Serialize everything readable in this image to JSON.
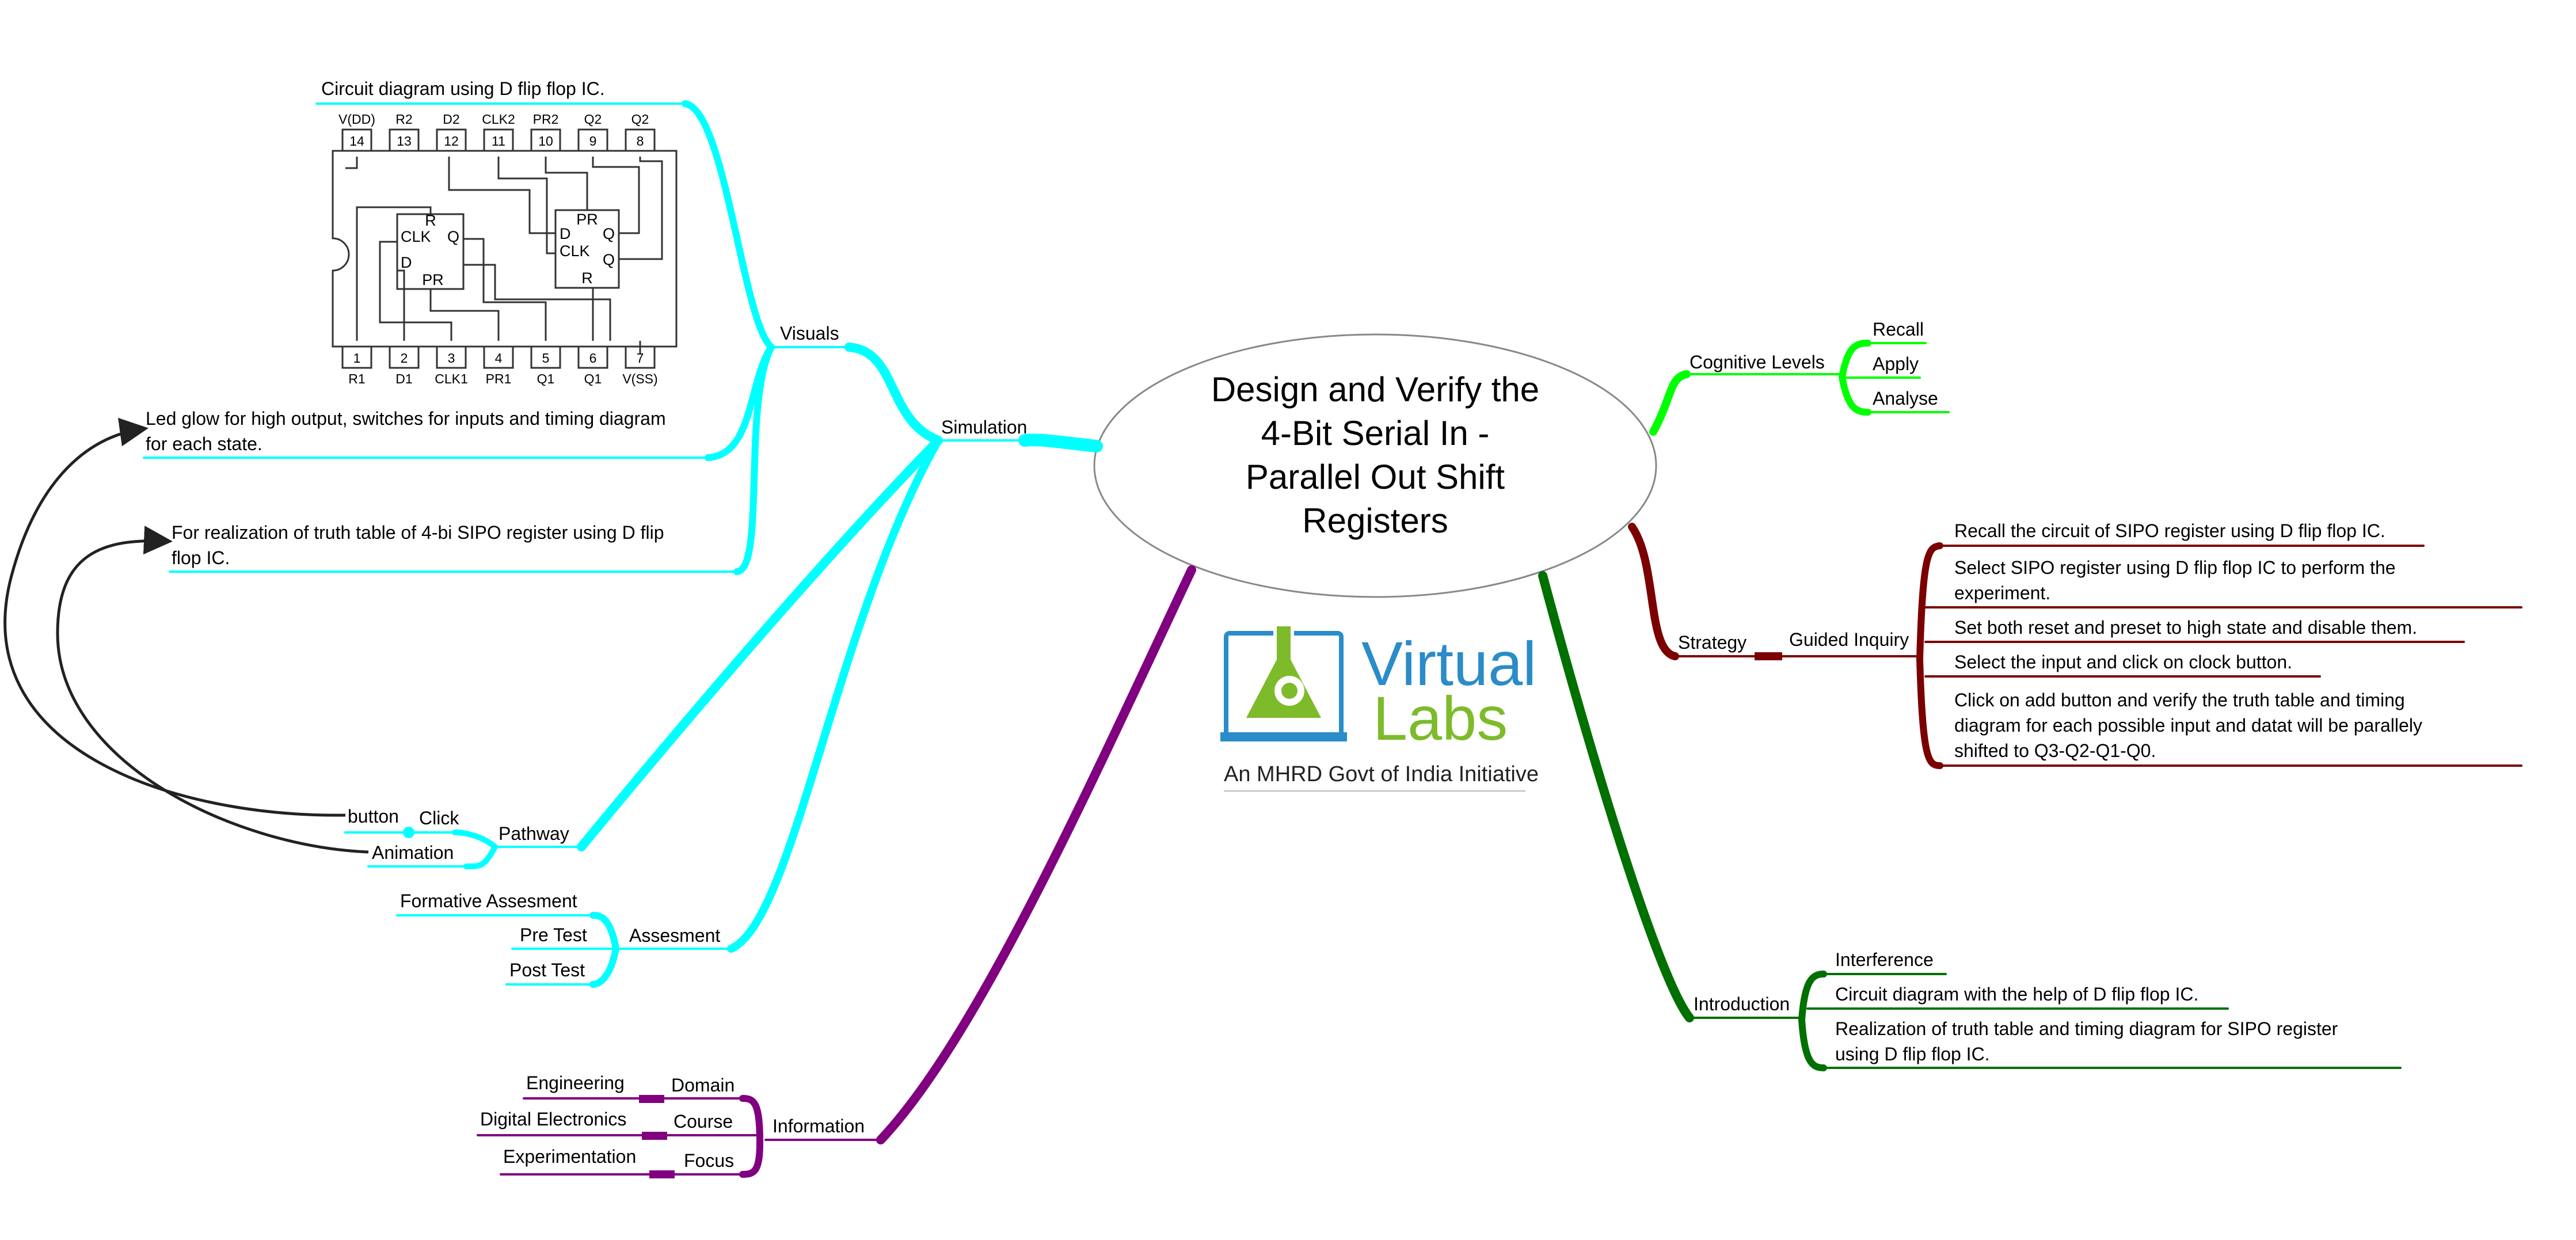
{
  "central": {
    "lines": [
      "Design and Verify the",
      "4-Bit Serial In -",
      "Parallel Out Shift",
      "Registers"
    ]
  },
  "colors": {
    "simulation": "#00ffff",
    "cognitive": "#00ff00",
    "strategy": "#7b0000",
    "introduction": "#007000",
    "information": "#800080",
    "arrow": "#222222"
  },
  "simulation": {
    "label": "Simulation",
    "visuals": {
      "label": "Visuals",
      "items": [
        {
          "lines": [
            "Circuit diagram using D flip flop IC."
          ]
        },
        {
          "lines": [
            "Led glow for high output, switches for inputs and timing diagram",
            "for each state."
          ]
        },
        {
          "lines": [
            "For realization of truth table of 4-bi SIPO register using D flip",
            "flop IC."
          ]
        }
      ]
    },
    "pathway": {
      "label": "Pathway",
      "click": "Click",
      "button": "button",
      "animation": "Animation"
    },
    "assesment": {
      "label": "Assesment",
      "items": [
        "Formative Assesment",
        "Pre Test",
        "Post Test"
      ]
    }
  },
  "chip": {
    "top_pins": [
      {
        "num": "14",
        "name": "V(DD)"
      },
      {
        "num": "13",
        "name": "R2"
      },
      {
        "num": "12",
        "name": "D2"
      },
      {
        "num": "11",
        "name": "CLK2"
      },
      {
        "num": "10",
        "name": "PR2"
      },
      {
        "num": "9",
        "name": "Q2"
      },
      {
        "num": "8",
        "name": "Q2"
      }
    ],
    "bottom_pins": [
      {
        "num": "1",
        "name": "R1"
      },
      {
        "num": "2",
        "name": "D1"
      },
      {
        "num": "3",
        "name": "CLK1"
      },
      {
        "num": "4",
        "name": "PR1"
      },
      {
        "num": "5",
        "name": "Q1"
      },
      {
        "num": "6",
        "name": "Q1"
      },
      {
        "num": "7",
        "name": "V(SS)"
      }
    ],
    "ff1": [
      "R",
      "CLK",
      "Q",
      "D",
      "PR"
    ],
    "ff2": [
      "PR",
      "D",
      "Q",
      "CLK",
      "Q",
      "R"
    ]
  },
  "information": {
    "label": "Information",
    "items": [
      {
        "label": "Domain",
        "value": "Engineering"
      },
      {
        "label": "Course",
        "value": "Digital Electronics"
      },
      {
        "label": "Focus",
        "value": "Experimentation"
      }
    ]
  },
  "cognitive": {
    "label": "Cognitive Levels",
    "items": [
      "Recall",
      "Apply",
      "Analyse"
    ]
  },
  "strategy": {
    "label": "Strategy",
    "guided": "Guided Inquiry",
    "items": [
      {
        "lines": [
          "Recall the circuit of SIPO register using D flip flop IC."
        ]
      },
      {
        "lines": [
          "Select SIPO register using D flip flop IC to perform the",
          "experiment."
        ]
      },
      {
        "lines": [
          "Set both reset and preset to high state and disable them."
        ]
      },
      {
        "lines": [
          "Select the input and click on clock button."
        ]
      },
      {
        "lines": [
          "Click on add button and verify the truth table and timing",
          "diagram for each possible input and datat will be parallely",
          "shifted to Q3-Q2-Q1-Q0."
        ]
      }
    ]
  },
  "introduction": {
    "label": "Introduction",
    "items": [
      {
        "lines": [
          "Interference"
        ]
      },
      {
        "lines": [
          "Circuit diagram with the help of D flip flop IC."
        ]
      },
      {
        "lines": [
          "Realization of truth table and timing diagram for SIPO register",
          "using D flip flop IC."
        ]
      }
    ]
  },
  "logo": {
    "word1": "Virtual",
    "word2": "Labs",
    "tagline": "An MHRD Govt of India Initiative"
  }
}
